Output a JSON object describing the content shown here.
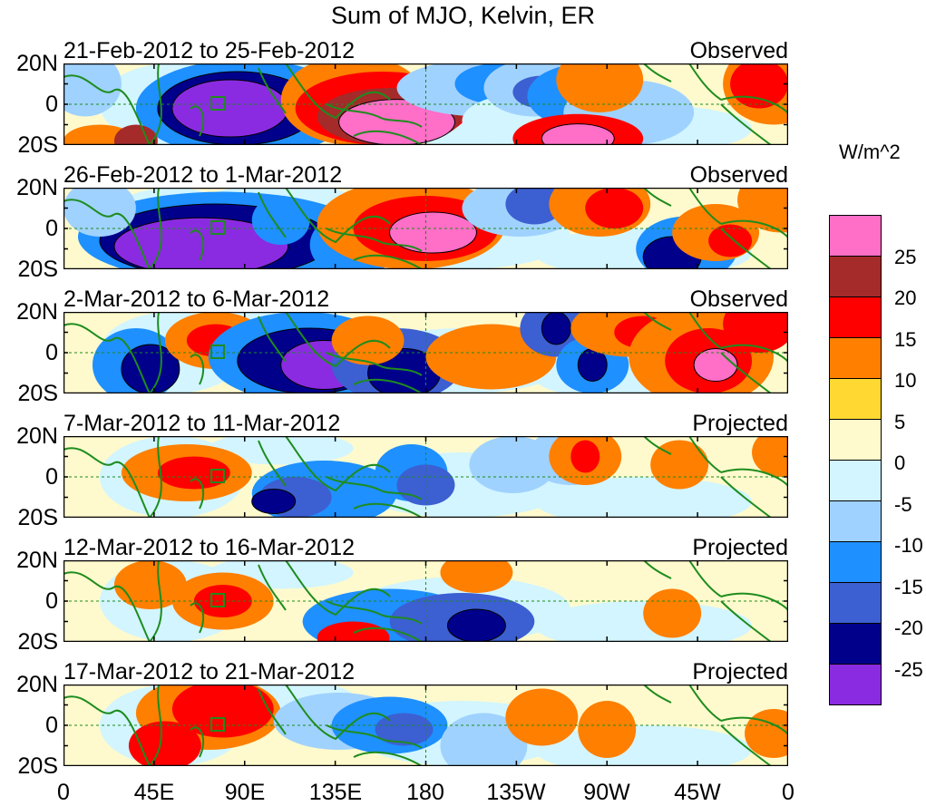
{
  "title": "Sum of MJO, Kelvin, ER",
  "map": {
    "lat_ticks": [
      "20N",
      "0",
      "20S"
    ],
    "lon_ticks": [
      "0",
      "45E",
      "90E",
      "135E",
      "180",
      "135W",
      "90W",
      "45W",
      "0"
    ],
    "panels": [
      {
        "dates": "21-Feb-2012 to 25-Feb-2012",
        "status": "Observed"
      },
      {
        "dates": "26-Feb-2012 to 1-Mar-2012",
        "status": "Observed"
      },
      {
        "dates": "2-Mar-2012 to 6-Mar-2012",
        "status": "Observed"
      },
      {
        "dates": "7-Mar-2012 to 11-Mar-2012",
        "status": "Projected"
      },
      {
        "dates": "12-Mar-2012 to 16-Mar-2012",
        "status": "Projected"
      },
      {
        "dates": "17-Mar-2012 to 21-Mar-2012",
        "status": "Projected"
      }
    ]
  },
  "colorbar": {
    "unit": "W/m^2",
    "labels": [
      "25",
      "20",
      "15",
      "10",
      "5",
      "0",
      "-5",
      "-10",
      "-15",
      "-20",
      "-25"
    ],
    "colors": [
      "#ff6ec7",
      "#a52a2a",
      "#ff0000",
      "#ff7f00",
      "#ffd832",
      "#fffacd",
      "#d2f5ff",
      "#a0d2ff",
      "#1e90ff",
      "#3c5fd2",
      "#00008b",
      "#8a2be2"
    ]
  }
}
